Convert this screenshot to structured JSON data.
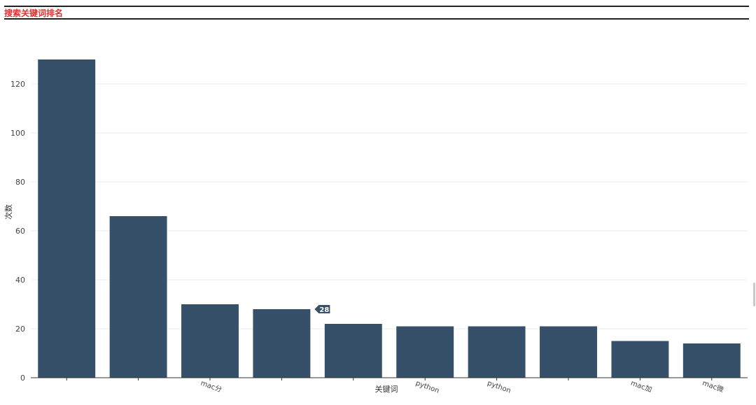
{
  "header": {
    "title": "搜索关键词排名"
  },
  "chart_data": {
    "type": "bar",
    "title": "",
    "xlabel": "关键词",
    "ylabel": "次数",
    "ylim": [
      0,
      130
    ],
    "yticks": [
      0,
      20,
      40,
      60,
      80,
      100,
      120
    ],
    "grid": true,
    "color": "#36506a",
    "categories": [
      "",
      "",
      "mac分",
      "",
      "",
      "python",
      "python",
      "",
      "mac加",
      "mac微"
    ],
    "values": [
      130,
      66,
      30,
      28,
      22,
      21,
      21,
      21,
      15,
      14
    ],
    "tooltip": {
      "category_index": 3,
      "text": "28"
    }
  }
}
